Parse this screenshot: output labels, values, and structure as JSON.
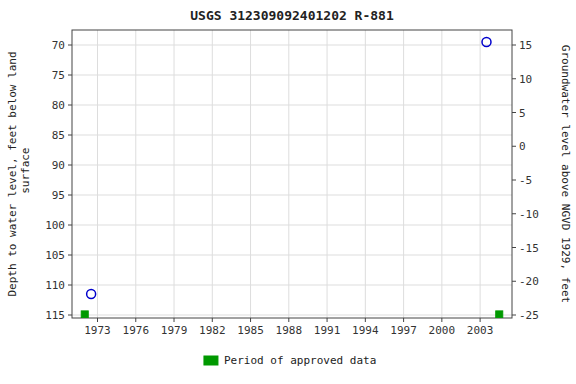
{
  "chart_data": {
    "type": "scatter",
    "title": "USGS 312309092401202 R-881",
    "ylabel": "Depth to water level, feet below land\n surface",
    "y2label": "Groundwater level above NGVD 1929, feet",
    "xlim": [
      1971.0,
      2005.5
    ],
    "xticks": [
      1973,
      1976,
      1979,
      1982,
      1985,
      1988,
      1991,
      1994,
      1997,
      2000,
      2003
    ],
    "ylim": [
      115.5,
      67.5
    ],
    "yticks": [
      70,
      75,
      80,
      85,
      90,
      95,
      100,
      105,
      110,
      115
    ],
    "y2lim": [
      -25.444444444444446,
      17.22222222222222
    ],
    "y2ticks": [
      15,
      10,
      5,
      0,
      -5,
      -10,
      -15,
      -20,
      -25
    ],
    "grid": true,
    "legend": "bottom",
    "series": [
      {
        "color": "#0000cc",
        "marker": "open-circle",
        "x": [
          1972.5,
          2003.5
        ],
        "values": [
          111.5,
          69.5
        ]
      },
      {
        "name": "Period of approved data",
        "color": "#009900",
        "marker": "square",
        "x": [
          1972.0,
          2004.5
        ],
        "values": [
          114.9,
          114.9
        ]
      }
    ]
  }
}
